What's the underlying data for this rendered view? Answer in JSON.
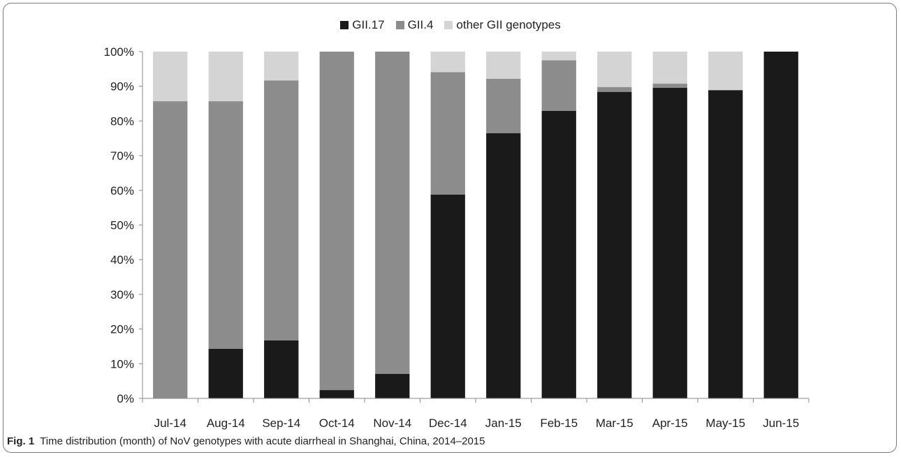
{
  "chart_data": {
    "type": "bar",
    "stacked": true,
    "normalized": true,
    "categories": [
      "Jul-14",
      "Aug-14",
      "Sep-14",
      "Oct-14",
      "Nov-14",
      "Dec-14",
      "Jan-15",
      "Feb-15",
      "Mar-15",
      "Apr-15",
      "May-15",
      "Jun-15"
    ],
    "series": [
      {
        "name": "GII.17",
        "color": "#1a1a1a",
        "values": [
          0,
          14.3,
          16.7,
          2.4,
          7.1,
          58.8,
          76.5,
          82.9,
          88.4,
          89.6,
          88.9,
          100
        ]
      },
      {
        "name": "GII.4",
        "color": "#8c8c8c",
        "values": [
          85.7,
          71.4,
          75.0,
          97.6,
          92.9,
          35.3,
          15.7,
          14.6,
          1.4,
          1.2,
          0,
          0
        ]
      },
      {
        "name": "other GII genotypes",
        "color": "#d4d4d4",
        "values": [
          14.3,
          14.3,
          8.3,
          0,
          0,
          5.9,
          7.8,
          2.5,
          10.2,
          9.2,
          11.1,
          0
        ]
      }
    ],
    "yticks": [
      "0%",
      "10%",
      "20%",
      "30%",
      "40%",
      "50%",
      "60%",
      "70%",
      "80%",
      "90%",
      "100%"
    ],
    "ylim": [
      0,
      100
    ],
    "grid": false,
    "legend_position": "top"
  },
  "caption": {
    "label": "Fig. 1",
    "text": "Time distribution (month) of NoV genotypes with acute diarrheal in Shanghai, China, 2014–2015"
  }
}
